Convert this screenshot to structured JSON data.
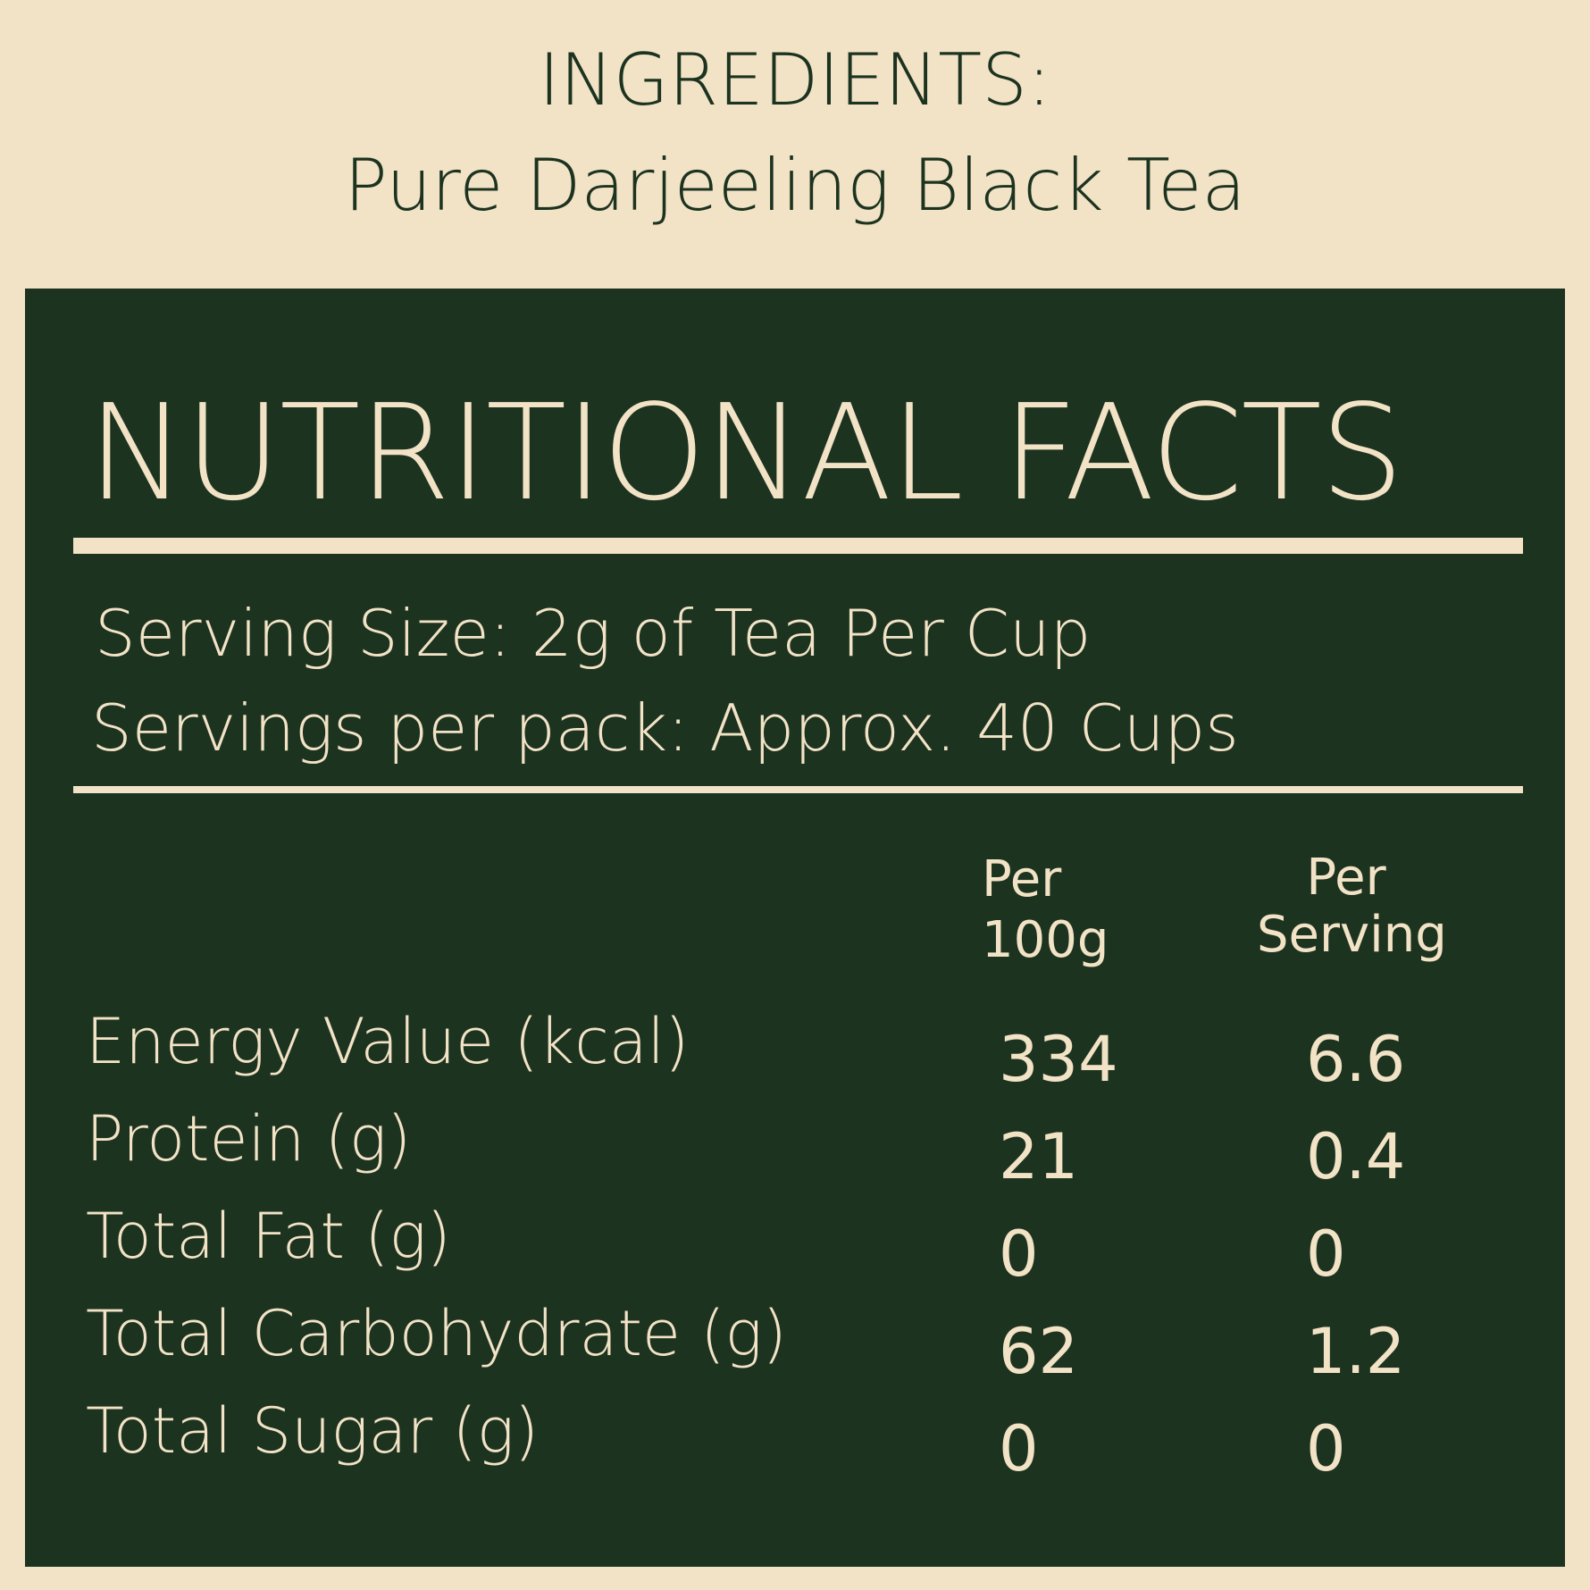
{
  "ingredients": {
    "heading": "INGREDIENTS:",
    "text": "Pure Darjeeling Black Tea"
  },
  "colors": {
    "background": "#f3e3c6",
    "panel": "#1c3320",
    "text_light": "#f3e3c6",
    "text_dark": "#1c3320"
  },
  "facts": {
    "title": "NUTRITIONAL FACTS",
    "serving_size": "Serving Size: 2g of Tea Per Cup",
    "servings_per_pack": "Servings per pack: Approx. 40 Cups",
    "columns": [
      {
        "line1": "Per",
        "line2": "100g"
      },
      {
        "line1": "Per",
        "line2": "Serving"
      }
    ],
    "rows": [
      {
        "label": "Energy Value (kcal)",
        "per100g": "334",
        "perServing": "6.6"
      },
      {
        "label": "Protein (g)",
        "per100g": "21",
        "perServing": "0.4"
      },
      {
        "label": "Total Fat (g)",
        "per100g": "0",
        "perServing": "0"
      },
      {
        "label": "Total Carbohydrate (g)",
        "per100g": "62",
        "perServing": "1.2"
      },
      {
        "label": "Total Sugar (g)",
        "per100g": "0",
        "perServing": "0"
      }
    ]
  }
}
